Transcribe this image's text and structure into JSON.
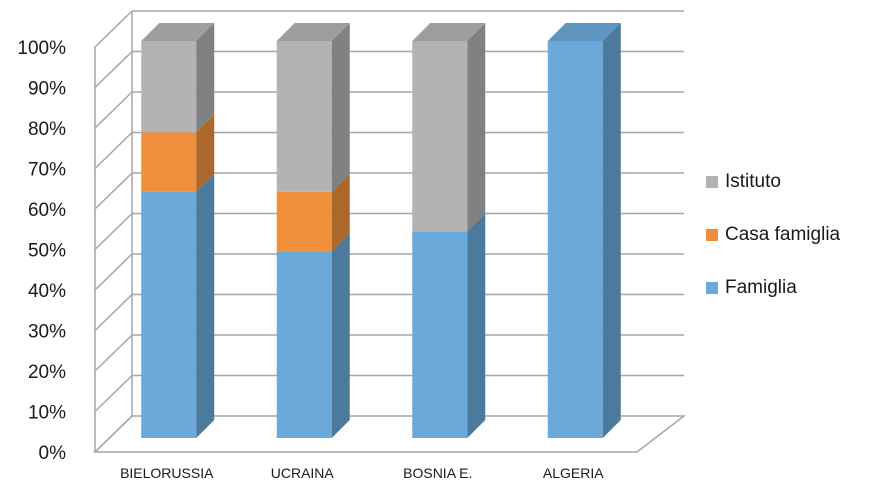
{
  "chart_data": {
    "type": "bar",
    "stacked": true,
    "percent": true,
    "three_d": true,
    "categories": [
      "BIELORUSSIA",
      "UCRAINA",
      "BOSNIA E.",
      "ALGERIA"
    ],
    "series": [
      {
        "name": "Famiglia",
        "values": [
          62,
          47,
          52,
          100
        ],
        "color": "#6aa9d9"
      },
      {
        "name": "Casa famiglia",
        "values": [
          15,
          15,
          0,
          0
        ],
        "color": "#ef8f3c"
      },
      {
        "name": "Istituto",
        "values": [
          23,
          38,
          48,
          0
        ],
        "color": "#b3b3b3"
      }
    ],
    "ylim": [
      0,
      100
    ],
    "yticks": [
      "0%",
      "10%",
      "20%",
      "30%",
      "40%",
      "50%",
      "60%",
      "70%",
      "80%",
      "90%",
      "100%"
    ],
    "grid": true,
    "legend_position": "right",
    "legend_order": [
      "Istituto",
      "Casa famiglia",
      "Famiglia"
    ],
    "gridline_color": "#a6a6a6"
  }
}
